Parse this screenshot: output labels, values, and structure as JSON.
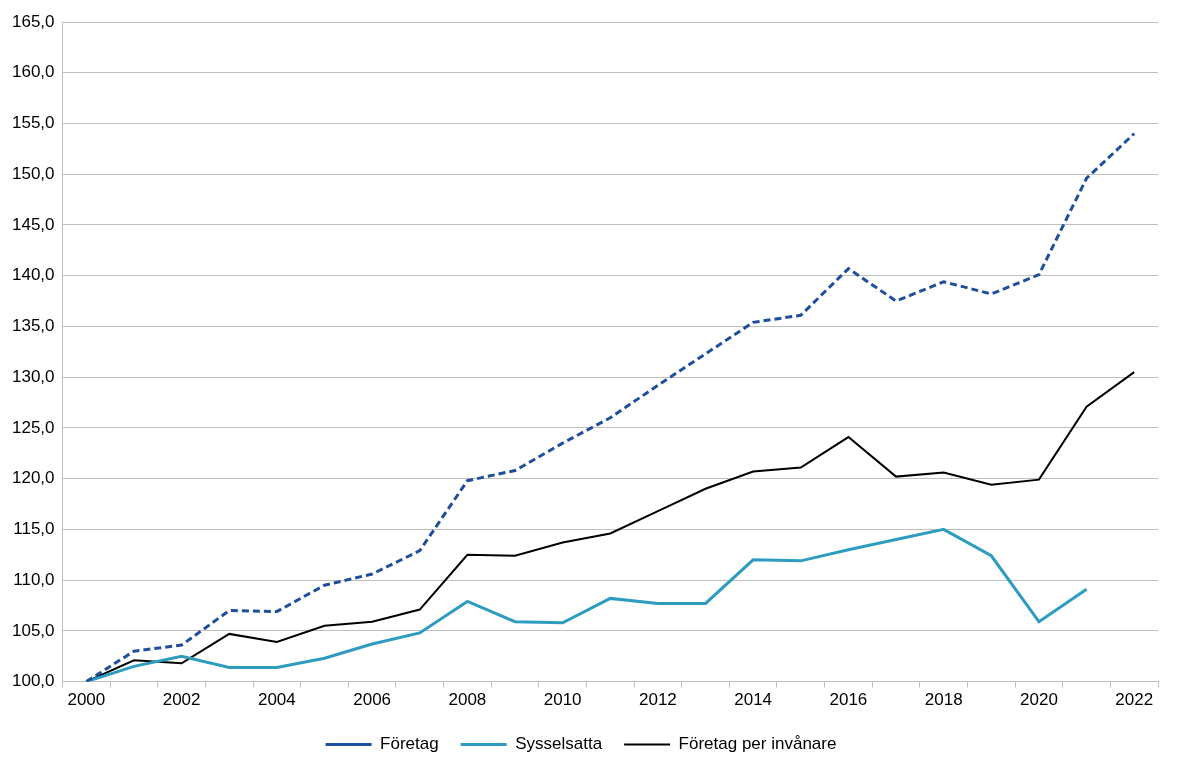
{
  "chart_data": {
    "type": "line",
    "categories": [
      "2000",
      null,
      "2002",
      null,
      "2004",
      null,
      "2006",
      null,
      "2008",
      null,
      "2010",
      null,
      "2012",
      null,
      "2014",
      null,
      "2016",
      null,
      "2018",
      null,
      "2020",
      null,
      "2022"
    ],
    "series": [
      {
        "name": "Företag",
        "color": "#1f4e9c",
        "line_style": "dashed",
        "marker": "none",
        "values": [
          100.0,
          103.0,
          103.6,
          107.0,
          106.9,
          109.5,
          110.6,
          112.9,
          119.8,
          120.8,
          123.5,
          126.0,
          129.2,
          132.3,
          135.4,
          136.1,
          140.7,
          137.5,
          139.4,
          138.2,
          140.1,
          149.6,
          154.0
        ]
      },
      {
        "name": "Sysselsatta",
        "color": "#2e9cbf",
        "line_style": "solid",
        "marker": "none",
        "values": [
          100.0,
          101.5,
          102.5,
          101.4,
          101.4,
          102.3,
          103.7,
          104.8,
          107.9,
          105.9,
          105.8,
          108.2,
          107.7,
          107.7,
          112.0,
          111.9,
          113.0,
          114.0,
          115.0,
          112.4,
          105.9,
          109.1,
          null
        ]
      },
      {
        "name": "Företag per invånare",
        "color": "#000000",
        "line_style": "solid",
        "marker": "none",
        "values": [
          100.0,
          102.1,
          101.8,
          104.7,
          103.9,
          105.5,
          105.9,
          107.1,
          112.5,
          112.4,
          113.7,
          114.6,
          116.8,
          119.0,
          120.7,
          121.1,
          124.1,
          120.2,
          120.6,
          119.4,
          119.9,
          127.1,
          130.5
        ]
      }
    ],
    "ylim": [
      100,
      165
    ],
    "yticks": [
      {
        "value": 100,
        "label": "100,0"
      },
      {
        "value": 105,
        "label": "105,0"
      },
      {
        "value": 110,
        "label": "110,0"
      },
      {
        "value": 115,
        "label": "115,0"
      },
      {
        "value": 120,
        "label": "120,0"
      },
      {
        "value": 125,
        "label": "125,0"
      },
      {
        "value": 130,
        "label": "130,0"
      },
      {
        "value": 135,
        "label": "135,0"
      },
      {
        "value": 140,
        "label": "140,0"
      },
      {
        "value": 145,
        "label": "145,0"
      },
      {
        "value": 150,
        "label": "150,0"
      },
      {
        "value": 155,
        "label": "155,0"
      },
      {
        "value": 160,
        "label": "160,0"
      },
      {
        "value": 165,
        "label": "165,0"
      }
    ],
    "grid": true,
    "legend": "bottom"
  }
}
